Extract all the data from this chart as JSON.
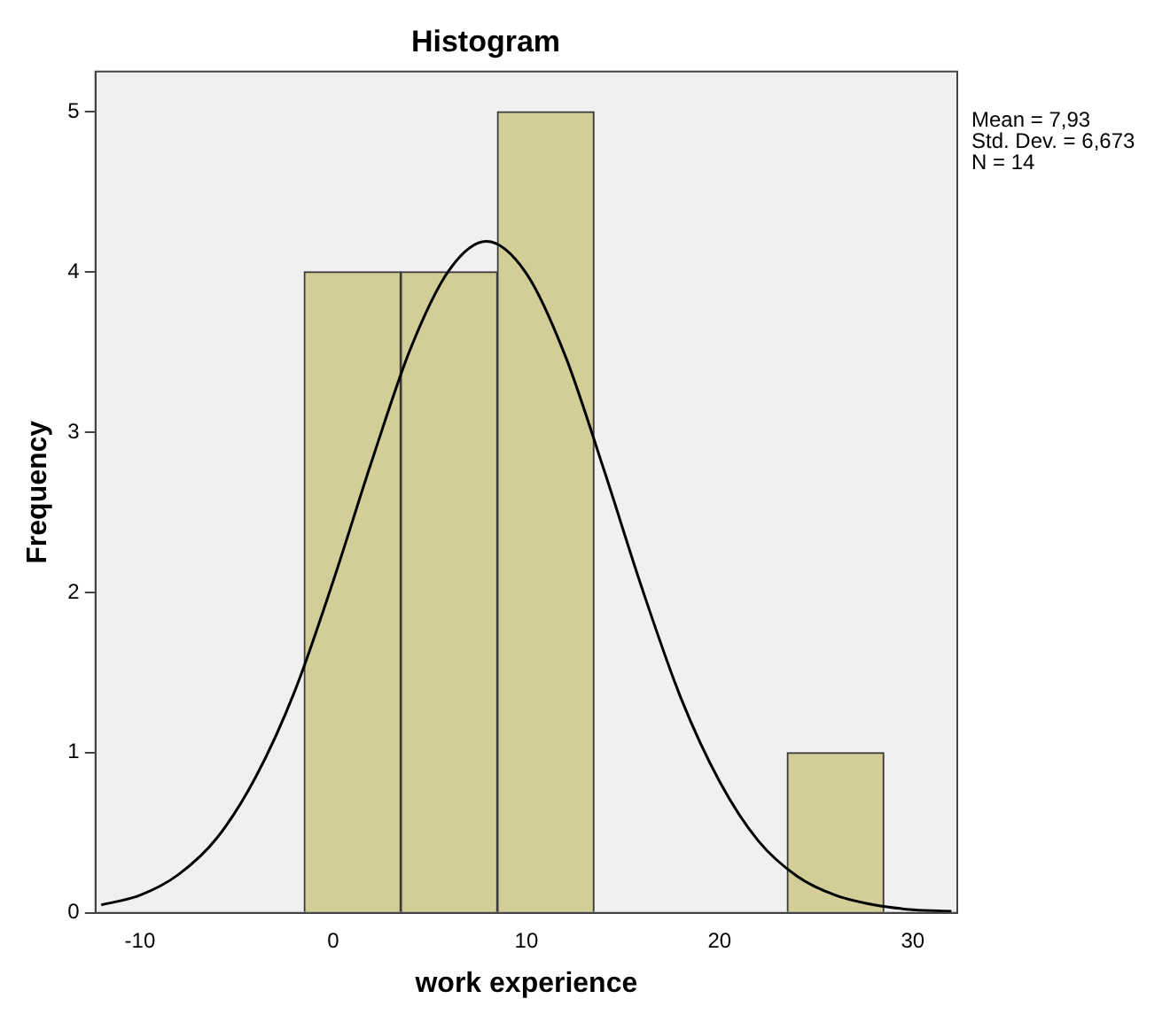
{
  "chart_data": {
    "type": "histogram",
    "title": "Histogram",
    "xlabel": "work experience",
    "ylabel": "Frequency",
    "bins": [
      -1.5,
      3.5,
      8.5,
      13.5,
      18.5,
      23.5,
      28.5
    ],
    "values": [
      4,
      4,
      5,
      0,
      0,
      1
    ],
    "color": "#d3ce97",
    "series": [
      {
        "type": "line",
        "color": "#000000",
        "x": [
          -12,
          -10,
          -8,
          -6,
          -4,
          -2,
          0,
          2,
          4,
          6,
          7.93,
          10,
          12,
          14,
          16,
          18,
          20,
          22,
          24,
          26,
          28,
          30,
          32
        ],
        "values": [
          0.05,
          0.11,
          0.24,
          0.47,
          0.85,
          1.38,
          2.07,
          2.82,
          3.52,
          4.01,
          4.19,
          3.99,
          3.48,
          2.77,
          2.02,
          1.34,
          0.82,
          0.45,
          0.23,
          0.11,
          0.05,
          0.02,
          0.01
        ]
      }
    ],
    "xlim": [
      -12.3,
      32.3
    ],
    "xticks": [
      -10,
      0,
      10,
      20,
      30
    ],
    "ylim": [
      0,
      5.25
    ],
    "yticks": [
      0,
      1,
      2,
      3,
      4,
      5
    ],
    "grid": false,
    "legend": false,
    "annotations": [
      "Mean = 7,93",
      "Std. Dev. = 6,673",
      "N = 14"
    ]
  }
}
